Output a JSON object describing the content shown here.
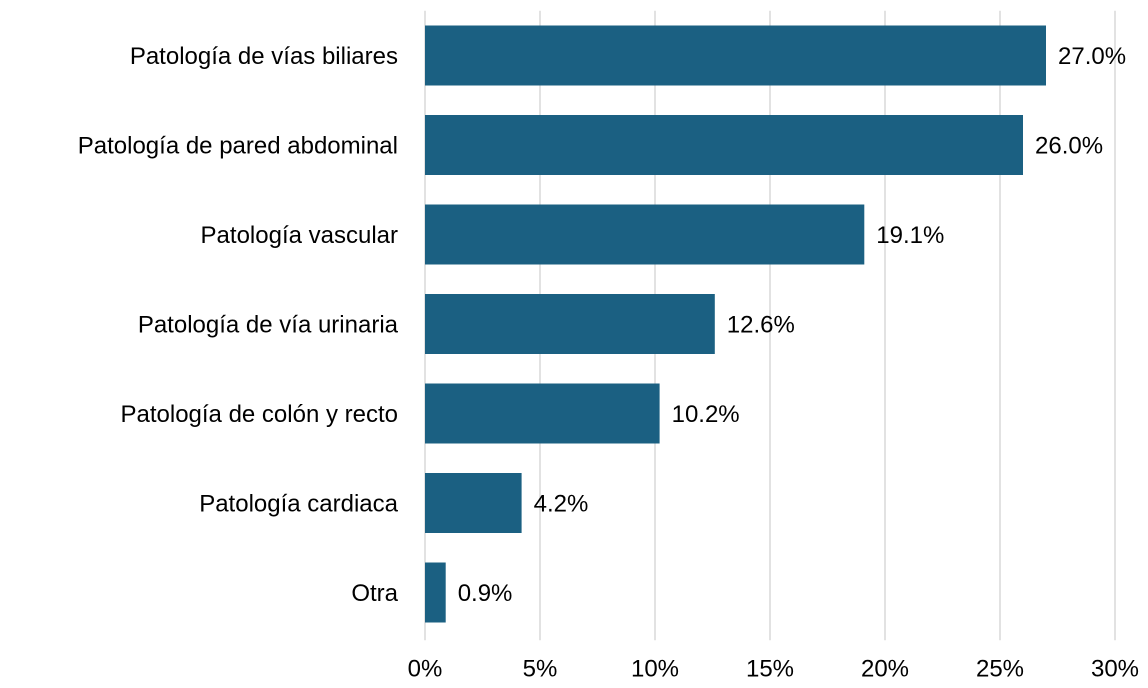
{
  "chart_data": {
    "type": "bar",
    "orientation": "horizontal",
    "categories": [
      "Patología de vías biliares",
      "Patología de pared abdominal",
      "Patología vascular",
      "Patología de vía urinaria",
      "Patología de colón y recto",
      "Patología cardiaca",
      "Otra"
    ],
    "values": [
      27.0,
      26.0,
      19.1,
      12.6,
      10.2,
      4.2,
      0.9
    ],
    "value_labels": [
      "27.0%",
      "26.0%",
      "19.1%",
      "12.6%",
      "10.2%",
      "4.2%",
      "0.9%"
    ],
    "color": "#1b6082",
    "xlim": [
      0,
      30
    ],
    "xticks": [
      {
        "value": 0,
        "label": "0%"
      },
      {
        "value": 5,
        "label": "5%"
      },
      {
        "value": 10,
        "label": "10%"
      },
      {
        "value": 15,
        "label": "15%"
      },
      {
        "value": 20,
        "label": "20%"
      },
      {
        "value": 25,
        "label": "25%"
      },
      {
        "value": 30,
        "label": "30%"
      }
    ],
    "grid": true
  }
}
